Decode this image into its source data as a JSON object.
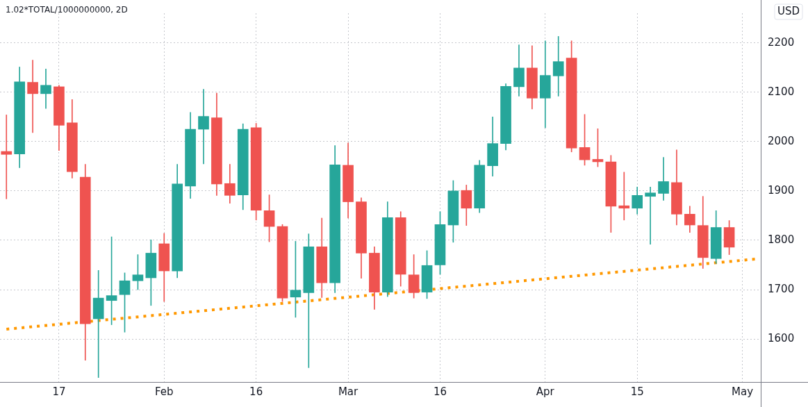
{
  "chart_data": {
    "type": "candlestick",
    "title": "1.02*TOTAL/1000000000, 2D",
    "ylabel": "USD",
    "categories": [
      null,
      null,
      null,
      null,
      "17",
      null,
      null,
      null,
      null,
      null,
      null,
      null,
      "Feb",
      null,
      null,
      null,
      null,
      null,
      null,
      "16",
      null,
      null,
      null,
      null,
      null,
      null,
      "Mar",
      null,
      null,
      null,
      null,
      null,
      null,
      "16",
      null,
      null,
      null,
      null,
      null,
      null,
      null,
      "Apr",
      null,
      null,
      null,
      null,
      null,
      null,
      "15",
      null,
      null,
      null,
      null,
      null,
      null,
      null,
      "May",
      null
    ],
    "ohlc": [
      [
        1980,
        2054,
        1884,
        1974
      ],
      [
        1975,
        2151,
        1947,
        2121
      ],
      [
        2120,
        2165,
        2018,
        2097
      ],
      [
        2097,
        2147,
        2067,
        2114
      ],
      [
        2111,
        2114,
        1982,
        2033
      ],
      [
        2038,
        2085,
        1926,
        1939
      ],
      [
        1928,
        1954,
        1557,
        1631
      ],
      [
        1641,
        1739,
        1522,
        1683
      ],
      [
        1678,
        1807,
        1629,
        1688
      ],
      [
        1690,
        1734,
        1614,
        1718
      ],
      [
        1718,
        1771,
        1700,
        1730
      ],
      [
        1724,
        1801,
        1668,
        1774
      ],
      [
        1793,
        1814,
        1676,
        1738
      ],
      [
        1738,
        1954,
        1724,
        1914
      ],
      [
        1910,
        2059,
        1885,
        2025
      ],
      [
        2025,
        2106,
        1955,
        2051
      ],
      [
        2048,
        2098,
        1891,
        1914
      ],
      [
        1915,
        1954,
        1875,
        1891
      ],
      [
        1892,
        2036,
        1862,
        2025
      ],
      [
        2028,
        2037,
        1841,
        1861
      ],
      [
        1860,
        1892,
        1797,
        1828
      ],
      [
        1828,
        1832,
        1676,
        1683
      ],
      [
        1685,
        1798,
        1644,
        1699
      ],
      [
        1694,
        1813,
        1542,
        1787
      ],
      [
        1787,
        1845,
        1684,
        1714
      ],
      [
        1714,
        1992,
        1694,
        1953
      ],
      [
        1952,
        1997,
        1845,
        1878
      ],
      [
        1878,
        1886,
        1723,
        1774
      ],
      [
        1774,
        1787,
        1660,
        1695
      ],
      [
        1695,
        1878,
        1686,
        1846
      ],
      [
        1846,
        1858,
        1707,
        1731
      ],
      [
        1730,
        1771,
        1683,
        1694
      ],
      [
        1695,
        1779,
        1682,
        1749
      ],
      [
        1750,
        1858,
        1731,
        1832
      ],
      [
        1831,
        1921,
        1796,
        1900
      ],
      [
        1901,
        1912,
        1830,
        1865
      ],
      [
        1865,
        1962,
        1856,
        1952
      ],
      [
        1951,
        2050,
        1930,
        1996
      ],
      [
        1996,
        2117,
        1983,
        2112
      ],
      [
        2111,
        2196,
        2092,
        2149
      ],
      [
        2149,
        2194,
        2066,
        2088
      ],
      [
        2088,
        2204,
        2028,
        2134
      ],
      [
        2133,
        2213,
        2092,
        2162
      ],
      [
        2169,
        2204,
        1979,
        1987
      ],
      [
        1988,
        2055,
        1952,
        1963
      ],
      [
        1964,
        2026,
        1949,
        1959
      ],
      [
        1959,
        1972,
        1816,
        1869
      ],
      [
        1870,
        1938,
        1841,
        1865
      ],
      [
        1865,
        1908,
        1853,
        1891
      ],
      [
        1889,
        1908,
        1792,
        1896
      ],
      [
        1895,
        1968,
        1881,
        1919
      ],
      [
        1917,
        1983,
        1831,
        1853
      ],
      [
        1853,
        1869,
        1816,
        1831
      ],
      [
        1830,
        1889,
        1743,
        1765
      ],
      [
        1763,
        1860,
        1753,
        1826
      ],
      [
        1826,
        1840,
        1771,
        1786
      ],
      null,
      null
    ],
    "colors": [
      "#ef5350",
      "#26a69a",
      "#ef5350",
      "#26a69a",
      "#ef5350",
      "#ef5350",
      "#ef5350",
      "#26a69a",
      "#26a69a",
      "#26a69a",
      "#26a69a",
      "#26a69a",
      "#ef5350",
      "#26a69a",
      "#26a69a",
      "#26a69a",
      "#ef5350",
      "#ef5350",
      "#26a69a",
      "#ef5350",
      "#ef5350",
      "#ef5350",
      "#26a69a",
      "#26a69a",
      "#ef5350",
      "#26a69a",
      "#ef5350",
      "#ef5350",
      "#ef5350",
      "#26a69a",
      "#ef5350",
      "#ef5350",
      "#26a69a",
      "#26a69a",
      "#26a69a",
      "#ef5350",
      "#26a69a",
      "#26a69a",
      "#26a69a",
      "#26a69a",
      "#ef5350",
      "#26a69a",
      "#26a69a",
      "#ef5350",
      "#ef5350",
      "#ef5350",
      "#ef5350",
      "#ef5350",
      "#26a69a",
      "#26a69a",
      "#26a69a",
      "#ef5350",
      "#ef5350",
      "#ef5350",
      "#26a69a",
      "#ef5350",
      null,
      null
    ],
    "series": [
      {
        "type": "line",
        "color": "#ff9800",
        "line_style": "dotted",
        "values": [
          1620,
          null,
          null,
          null,
          null,
          null,
          null,
          null,
          null,
          null,
          null,
          null,
          null,
          null,
          null,
          null,
          null,
          null,
          null,
          null,
          null,
          null,
          null,
          null,
          null,
          null,
          null,
          null,
          null,
          null,
          null,
          null,
          null,
          null,
          null,
          null,
          null,
          null,
          null,
          null,
          null,
          null,
          null,
          null,
          null,
          null,
          null,
          null,
          null,
          null,
          null,
          null,
          null,
          null,
          null,
          null,
          null,
          1762
        ]
      }
    ],
    "ylim": [
      1513,
      2260
    ],
    "yticks": [
      1600,
      1700,
      1800,
      1900,
      2000,
      2100,
      2200
    ],
    "grid": true
  }
}
